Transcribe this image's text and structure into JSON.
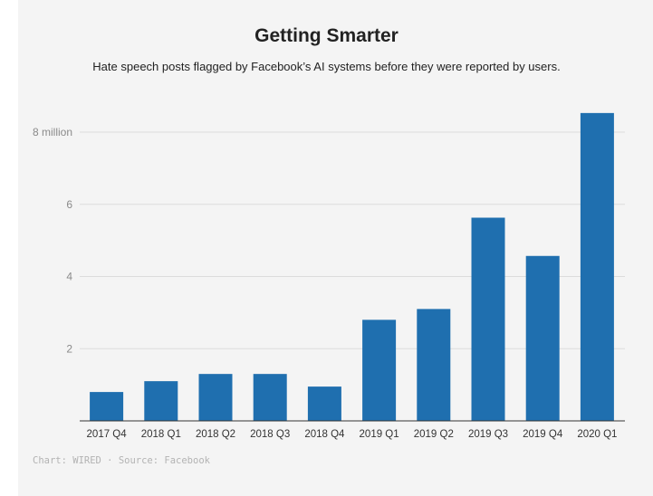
{
  "chart_data": {
    "type": "bar",
    "title": "Getting Smarter",
    "subtitle": "Hate speech posts flagged by Facebook’s AI systems before they were reported by users.",
    "categories": [
      "2017 Q4",
      "2018 Q1",
      "2018 Q2",
      "2018 Q3",
      "2018 Q4",
      "2019 Q1",
      "2019 Q2",
      "2019 Q3",
      "2019 Q4",
      "2020 Q1"
    ],
    "values": [
      0.8,
      1.1,
      1.3,
      1.3,
      0.95,
      2.8,
      3.1,
      5.63,
      4.57,
      8.53
    ],
    "ylim": [
      0,
      8
    ],
    "yticks": [
      {
        "value": 2,
        "label": "2"
      },
      {
        "value": 4,
        "label": "4"
      },
      {
        "value": 6,
        "label": "6"
      },
      {
        "value": 8,
        "label": "8 million"
      }
    ],
    "xlabel": "",
    "ylabel": "",
    "bar_color": "#1f6faf",
    "grid": true
  },
  "credit": {
    "chart": "Chart: WIRED",
    "separator": " · ",
    "source": "Source: Facebook"
  }
}
